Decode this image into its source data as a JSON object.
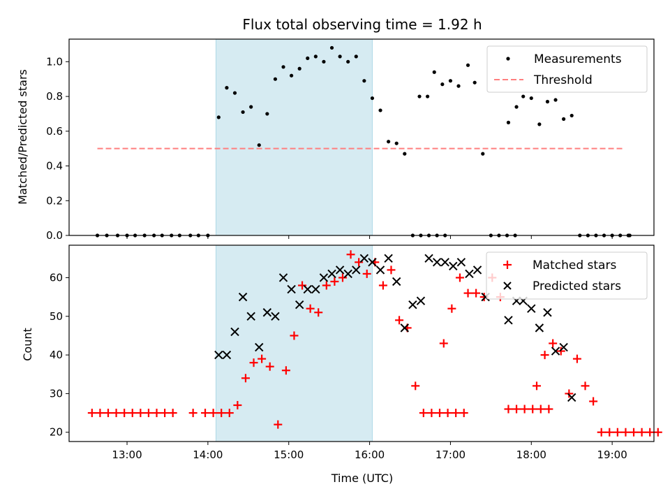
{
  "chart_data": [
    {
      "type": "scatter",
      "title": "Flux total observing time = 1.92 h",
      "ylabel": "Matched/Predicted stars",
      "xlabel": "",
      "xlim": [
        "12:17",
        "19:31"
      ],
      "ylim": [
        0,
        1.13
      ],
      "yticks": [
        "0.0",
        "0.2",
        "0.4",
        "0.6",
        "0.8",
        "1.0"
      ],
      "grid": false,
      "legend": "top-right",
      "shaded_interval": [
        "14:06",
        "16:02"
      ],
      "series": [
        {
          "name": "Measurements",
          "marker": "dot",
          "color": "#000000",
          "points": [
            [
              "12:38",
              0.0
            ],
            [
              "12:45",
              0.0
            ],
            [
              "12:53",
              0.0
            ],
            [
              "13:00",
              0.0
            ],
            [
              "13:06",
              0.0
            ],
            [
              "13:13",
              0.0
            ],
            [
              "13:20",
              0.0
            ],
            [
              "13:26",
              0.0
            ],
            [
              "13:33",
              0.0
            ],
            [
              "13:39",
              0.0
            ],
            [
              "13:47",
              0.0
            ],
            [
              "13:53",
              0.0
            ],
            [
              "14:00",
              0.0
            ],
            [
              "14:08",
              0.68
            ],
            [
              "14:14",
              0.85
            ],
            [
              "14:20",
              0.82
            ],
            [
              "14:26",
              0.71
            ],
            [
              "14:32",
              0.74
            ],
            [
              "14:38",
              0.52
            ],
            [
              "14:44",
              0.7
            ],
            [
              "14:50",
              0.9
            ],
            [
              "14:56",
              0.97
            ],
            [
              "15:02",
              0.92
            ],
            [
              "15:08",
              0.96
            ],
            [
              "15:14",
              1.02
            ],
            [
              "15:20",
              1.03
            ],
            [
              "15:26",
              1.0
            ],
            [
              "15:32",
              1.08
            ],
            [
              "15:38",
              1.03
            ],
            [
              "15:44",
              1.0
            ],
            [
              "15:50",
              1.03
            ],
            [
              "15:56",
              0.89
            ],
            [
              "16:02",
              0.79
            ],
            [
              "16:08",
              0.72
            ],
            [
              "16:14",
              0.54
            ],
            [
              "16:20",
              0.53
            ],
            [
              "16:26",
              0.47
            ],
            [
              "16:32",
              0.0
            ],
            [
              "16:38",
              0.0
            ],
            [
              "16:44",
              0.0
            ],
            [
              "16:50",
              0.0
            ],
            [
              "16:56",
              0.0
            ],
            [
              "16:37",
              0.8
            ],
            [
              "16:43",
              0.8
            ],
            [
              "16:48",
              0.94
            ],
            [
              "16:54",
              0.87
            ],
            [
              "17:00",
              0.89
            ],
            [
              "17:06",
              0.86
            ],
            [
              "17:13",
              0.98
            ],
            [
              "17:18",
              0.88
            ],
            [
              "17:24",
              0.47
            ],
            [
              "17:30",
              0.0
            ],
            [
              "17:36",
              0.0
            ],
            [
              "17:42",
              0.0
            ],
            [
              "17:48",
              0.0
            ],
            [
              "17:43",
              0.65
            ],
            [
              "17:49",
              0.74
            ],
            [
              "17:54",
              0.8
            ],
            [
              "18:00",
              0.79
            ],
            [
              "18:06",
              0.64
            ],
            [
              "18:12",
              0.77
            ],
            [
              "18:18",
              0.78
            ],
            [
              "18:24",
              0.67
            ],
            [
              "18:30",
              0.69
            ],
            [
              "18:36",
              0.0
            ],
            [
              "18:42",
              0.0
            ],
            [
              "18:48",
              0.0
            ],
            [
              "18:54",
              0.0
            ],
            [
              "19:00",
              0.0
            ],
            [
              "19:06",
              0.0
            ],
            [
              "19:12",
              0.0
            ],
            [
              "19:13",
              0.0
            ]
          ]
        },
        {
          "name": "Threshold",
          "style": "dashed-line",
          "color": "#ff7f7f",
          "points": [
            [
              "12:38",
              0.5
            ],
            [
              "19:09",
              0.5
            ]
          ]
        }
      ]
    },
    {
      "type": "scatter",
      "title": "",
      "ylabel": "Count",
      "xlabel": "Time (UTC)",
      "xlim": [
        "12:17",
        "19:31"
      ],
      "ylim": [
        17.6,
        68.4
      ],
      "yticks": [
        "20",
        "30",
        "40",
        "50",
        "60"
      ],
      "xticks": [
        "13:00",
        "14:00",
        "15:00",
        "16:00",
        "17:00",
        "18:00",
        "19:00"
      ],
      "grid": false,
      "legend": "top-right",
      "shaded_interval": [
        "14:06",
        "16:02"
      ],
      "series": [
        {
          "name": "Matched stars",
          "marker": "plus",
          "color": "#ff0000",
          "points": [
            [
              "12:34",
              25
            ],
            [
              "12:40",
              25
            ],
            [
              "12:46",
              25
            ],
            [
              "12:52",
              25
            ],
            [
              "12:58",
              25
            ],
            [
              "13:04",
              25
            ],
            [
              "13:10",
              25
            ],
            [
              "13:16",
              25
            ],
            [
              "13:22",
              25
            ],
            [
              "13:28",
              25
            ],
            [
              "13:34",
              25
            ],
            [
              "13:49",
              25
            ],
            [
              "13:58",
              25
            ],
            [
              "14:04",
              25
            ],
            [
              "14:10",
              25
            ],
            [
              "14:16",
              25
            ],
            [
              "14:22",
              27
            ],
            [
              "14:28",
              34
            ],
            [
              "14:34",
              38
            ],
            [
              "14:40",
              39
            ],
            [
              "14:46",
              37
            ],
            [
              "14:52",
              22
            ],
            [
              "14:58",
              36
            ],
            [
              "15:04",
              45
            ],
            [
              "15:10",
              58
            ],
            [
              "15:16",
              52
            ],
            [
              "15:22",
              51
            ],
            [
              "15:28",
              58
            ],
            [
              "15:34",
              59
            ],
            [
              "15:40",
              60
            ],
            [
              "15:46",
              66
            ],
            [
              "15:52",
              64
            ],
            [
              "15:58",
              61
            ],
            [
              "16:04",
              64
            ],
            [
              "16:10",
              58
            ],
            [
              "16:16",
              62
            ],
            [
              "16:22",
              49
            ],
            [
              "16:28",
              47
            ],
            [
              "16:34",
              32
            ],
            [
              "16:40",
              25
            ],
            [
              "16:46",
              25
            ],
            [
              "16:52",
              25
            ],
            [
              "16:58",
              25
            ],
            [
              "17:04",
              25
            ],
            [
              "17:10",
              25
            ],
            [
              "16:55",
              43
            ],
            [
              "17:01",
              52
            ],
            [
              "17:07",
              60
            ],
            [
              "17:13",
              56
            ],
            [
              "17:19",
              56
            ],
            [
              "17:25",
              55
            ],
            [
              "17:31",
              60
            ],
            [
              "17:37",
              55
            ],
            [
              "17:43",
              26
            ],
            [
              "17:49",
              26
            ],
            [
              "17:55",
              26
            ],
            [
              "18:01",
              26
            ],
            [
              "18:07",
              26
            ],
            [
              "18:13",
              26
            ],
            [
              "18:04",
              32
            ],
            [
              "18:10",
              40
            ],
            [
              "18:16",
              43
            ],
            [
              "18:22",
              41
            ],
            [
              "18:28",
              30
            ],
            [
              "18:34",
              39
            ],
            [
              "18:40",
              32
            ],
            [
              "18:46",
              28
            ],
            [
              "18:52",
              20
            ],
            [
              "18:58",
              20
            ],
            [
              "19:04",
              20
            ],
            [
              "19:10",
              20
            ],
            [
              "19:16",
              20
            ],
            [
              "19:22",
              20
            ],
            [
              "19:28",
              20
            ],
            [
              "19:34",
              20
            ]
          ]
        },
        {
          "name": "Predicted stars",
          "marker": "x",
          "color": "#000000",
          "points": [
            [
              "14:08",
              40
            ],
            [
              "14:14",
              40
            ],
            [
              "14:20",
              46
            ],
            [
              "14:26",
              55
            ],
            [
              "14:32",
              50
            ],
            [
              "14:38",
              42
            ],
            [
              "14:44",
              51
            ],
            [
              "14:50",
              50
            ],
            [
              "14:56",
              60
            ],
            [
              "15:02",
              57
            ],
            [
              "15:08",
              53
            ],
            [
              "15:14",
              57
            ],
            [
              "15:20",
              57
            ],
            [
              "15:26",
              60
            ],
            [
              "15:32",
              61
            ],
            [
              "15:38",
              62
            ],
            [
              "15:44",
              61
            ],
            [
              "15:50",
              62
            ],
            [
              "15:56",
              65
            ],
            [
              "16:02",
              64
            ],
            [
              "16:08",
              62
            ],
            [
              "16:14",
              65
            ],
            [
              "16:20",
              59
            ],
            [
              "16:26",
              47
            ],
            [
              "16:32",
              53
            ],
            [
              "16:38",
              54
            ],
            [
              "16:44",
              65
            ],
            [
              "16:50",
              64
            ],
            [
              "16:56",
              64
            ],
            [
              "17:02",
              63
            ],
            [
              "17:08",
              64
            ],
            [
              "17:14",
              61
            ],
            [
              "17:20",
              62
            ],
            [
              "17:26",
              55
            ],
            [
              "17:43",
              49
            ],
            [
              "17:49",
              54
            ],
            [
              "17:54",
              54
            ],
            [
              "18:00",
              52
            ],
            [
              "18:06",
              47
            ],
            [
              "18:12",
              51
            ],
            [
              "18:18",
              41
            ],
            [
              "18:24",
              42
            ],
            [
              "18:30",
              29
            ]
          ]
        }
      ]
    }
  ]
}
